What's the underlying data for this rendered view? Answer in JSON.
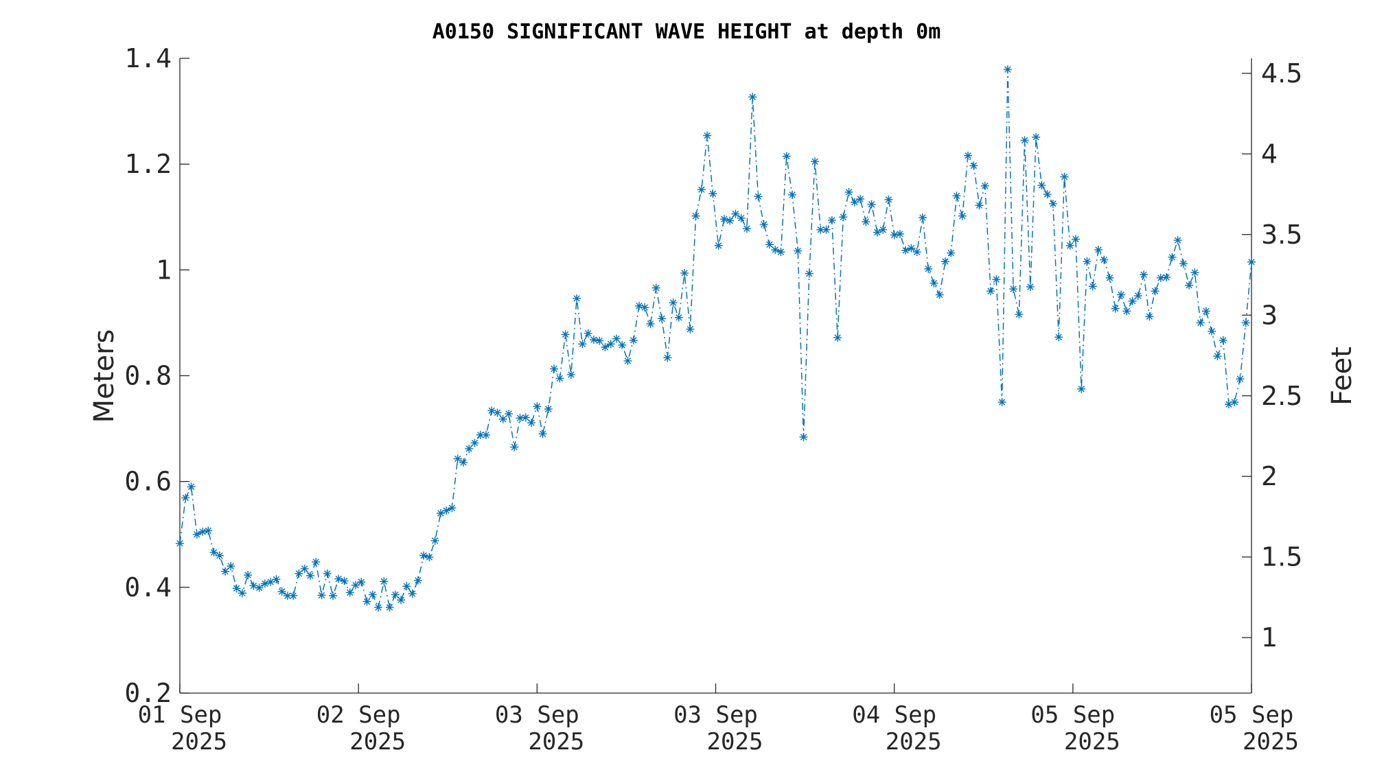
{
  "chart_data": {
    "type": "line",
    "title": "A0150 SIGNIFICANT WAVE HEIGHT at depth 0m",
    "ylabel": "Meters",
    "ylabel_right": "Feet",
    "xlabel": "",
    "ylim": [
      0.2,
      1.4
    ],
    "ylim_right": [
      0.656,
      4.593
    ],
    "yticks": [
      "0.2",
      "0.4",
      "0.6",
      "0.8",
      "1",
      "1.2",
      "1.4"
    ],
    "yticks_right": [
      "1",
      "1.5",
      "2",
      "2.5",
      "3",
      "3.5",
      "4",
      "4.5"
    ],
    "xlim": [
      0,
      4.5
    ],
    "x_unit": "days since 01 Sep 2025 00:00",
    "xticks": [
      {
        "day": "01 Sep",
        "year": "2025"
      },
      {
        "day": "02 Sep",
        "year": "2025"
      },
      {
        "day": "03 Sep",
        "year": "2025"
      },
      {
        "day": "03 Sep",
        "year": "2025"
      },
      {
        "day": "04 Sep",
        "year": "2025"
      },
      {
        "day": "05 Sep",
        "year": "2025"
      },
      {
        "day": "05 Sep",
        "year": "2025"
      }
    ],
    "color": "#0072BD",
    "marker": "asterisk",
    "line_style": "dash-dot",
    "grid": false,
    "series": [
      {
        "values": [
          0.483,
          0.569,
          0.59,
          0.5,
          0.505,
          0.507,
          0.466,
          0.46,
          0.43,
          0.44,
          0.398,
          0.389,
          0.423,
          0.403,
          0.399,
          0.407,
          0.41,
          0.415,
          0.392,
          0.384,
          0.384,
          0.426,
          0.435,
          0.422,
          0.448,
          0.385,
          0.426,
          0.384,
          0.416,
          0.412,
          0.39,
          0.404,
          0.41,
          0.373,
          0.386,
          0.362,
          0.411,
          0.362,
          0.386,
          0.376,
          0.402,
          0.388,
          0.413,
          0.46,
          0.457,
          0.488,
          0.54,
          0.545,
          0.55,
          0.643,
          0.636,
          0.662,
          0.673,
          0.688,
          0.688,
          0.734,
          0.73,
          0.718,
          0.728,
          0.665,
          0.72,
          0.721,
          0.711,
          0.742,
          0.69,
          0.737,
          0.813,
          0.795,
          0.878,
          0.802,
          0.946,
          0.86,
          0.88,
          0.868,
          0.866,
          0.854,
          0.86,
          0.87,
          0.858,
          0.828,
          0.867,
          0.932,
          0.929,
          0.898,
          0.966,
          0.908,
          0.834,
          0.938,
          0.91,
          0.994,
          0.888,
          1.102,
          1.152,
          1.254,
          1.144,
          1.046,
          1.096,
          1.093,
          1.106,
          1.098,
          1.078,
          1.327,
          1.139,
          1.086,
          1.048,
          1.038,
          1.034,
          1.215,
          1.142,
          1.036,
          0.684,
          0.993,
          1.205,
          1.076,
          1.076,
          1.094,
          0.872,
          1.1,
          1.147,
          1.128,
          1.134,
          1.091,
          1.124,
          1.071,
          1.076,
          1.133,
          1.066,
          1.068,
          1.037,
          1.041,
          1.034,
          1.099,
          1.002,
          0.975,
          0.953,
          1.016,
          1.032,
          1.14,
          1.102,
          1.216,
          1.197,
          1.122,
          1.159,
          0.96,
          0.982,
          0.75,
          1.379,
          0.964,
          0.916,
          1.245,
          0.968,
          1.251,
          1.16,
          1.143,
          1.125,
          0.873,
          1.176,
          1.046,
          1.058,
          0.775,
          1.016,
          0.969,
          1.038,
          1.019,
          0.985,
          0.927,
          0.953,
          0.922,
          0.941,
          0.951,
          0.991,
          0.912,
          0.96,
          0.985,
          0.986,
          1.024,
          1.056,
          1.012,
          0.971,
          0.995,
          0.9,
          0.922,
          0.884,
          0.837,
          0.867,
          0.746,
          0.75,
          0.794,
          0.9,
          1.015
        ]
      }
    ]
  }
}
